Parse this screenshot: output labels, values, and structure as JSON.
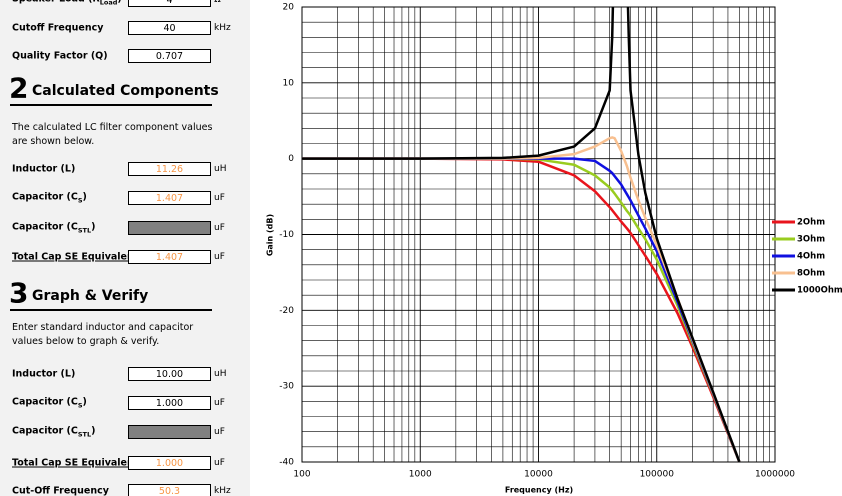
{
  "form": {
    "top_rows": [
      {
        "label": "Speaker Load (R",
        "sub": "Load",
        "tail": ")",
        "value": "4",
        "unit": "Ω"
      },
      {
        "label": "Cutoff Frequency",
        "value": "40",
        "unit": "kHz"
      },
      {
        "label": "Quality Factor (Q)",
        "value": "0.707"
      }
    ],
    "sections": [
      {
        "number": "2",
        "title": "Calculated Components",
        "text": "The calculated LC filter component values are shown below.",
        "rows": [
          {
            "label": "Inductor (L)",
            "value": "11.26",
            "unit": "uH"
          },
          {
            "label": "Capacitor (C",
            "sub": "S",
            "tail": ")",
            "value": "1.407",
            "unit": "uF"
          },
          {
            "label": "Capacitor (C",
            "sub": "STL",
            "tail": ")",
            "unit": "uF"
          },
          {
            "label": "Total Cap SE Equivalent",
            "value": "1.407",
            "unit": "uF"
          }
        ]
      },
      {
        "number": "3",
        "title": "Graph & Verify",
        "text": "Enter standard inductor and capacitor values below to graph & verify.",
        "rows": [
          {
            "label": "Inductor (L)",
            "value": "10.00",
            "unit": "uH"
          },
          {
            "label": "Capacitor (C",
            "sub": "S",
            "tail": ")",
            "value": "1.000",
            "unit": "uF"
          },
          {
            "label": "Capacitor (C",
            "sub": "STL",
            "tail": ")",
            "unit": "uF"
          },
          {
            "label": "Total Cap SE Equivalent",
            "value": "1.000",
            "unit": "uF"
          },
          {
            "label": "Cut-Off Frequency",
            "value": "50.3",
            "unit": "kHz"
          }
        ]
      }
    ]
  },
  "chart_data": {
    "type": "line",
    "x_label": "Frequency (Hz)",
    "y_label": "Gain (dB)",
    "x": [
      100,
      1000,
      5000,
      10000,
      20000,
      30000,
      40000,
      42000,
      44000,
      50000,
      56000,
      58000,
      60000,
      70000,
      80000,
      100000,
      150000,
      200000,
      300000,
      500000
    ],
    "xlim": [
      100,
      1000000
    ],
    "xticks": [
      100,
      1000,
      10000,
      100000,
      1000000
    ],
    "xlog": true,
    "ylim": [
      -40,
      20
    ],
    "yticks": [
      -40,
      -30,
      -20,
      -10,
      0,
      10,
      20
    ],
    "grid": true,
    "minor_grid": true,
    "legend": "right",
    "series": [
      {
        "name": "2Ohm",
        "color": "#e8141c",
        "values": [
          0,
          0,
          -0.1,
          -0.4,
          -2.2,
          -4.3,
          -6.4,
          -6.8,
          -7.2,
          -8.3,
          -9.2,
          -9.5,
          -9.8,
          -11.4,
          -12.8,
          -15.2,
          -20.4,
          -24.8,
          -31.4,
          -40
        ]
      },
      {
        "name": "3Ohm",
        "color": "#99cc1f",
        "values": [
          0,
          0,
          0,
          -0.1,
          -0.8,
          -2.2,
          -3.8,
          -4.2,
          -4.6,
          -5.8,
          -6.9,
          -7.2,
          -7.5,
          -9.2,
          -10.6,
          -13.3,
          -19.4,
          -24.3,
          -31.1,
          -40
        ]
      },
      {
        "name": "4Ohm",
        "color": "#1010e0",
        "values": [
          0,
          0,
          0,
          0,
          0,
          -0.3,
          -1.6,
          -1.9,
          -2.3,
          -3.4,
          -4.7,
          -5.1,
          -5.5,
          -7.5,
          -9.2,
          -12.2,
          -18.9,
          -24.0,
          -31.0,
          -40
        ]
      },
      {
        "name": "8Ohm",
        "color": "#f8c090",
        "values": [
          0,
          0,
          0,
          0.1,
          0.6,
          1.6,
          2.7,
          2.8,
          2.7,
          1.0,
          -1.0,
          -1.8,
          -2.5,
          -5.5,
          -7.8,
          -11.4,
          -18.4,
          -23.8,
          -30.9,
          -40
        ]
      },
      {
        "name": "1000Ohm",
        "color": "#000000",
        "values": [
          0,
          0,
          0.1,
          0.4,
          1.6,
          4,
          9,
          16,
          30,
          null,
          25,
          16,
          9,
          0.5,
          -4.5,
          -10.5,
          -18.5,
          -23.6,
          -30.8,
          -40
        ]
      }
    ]
  }
}
